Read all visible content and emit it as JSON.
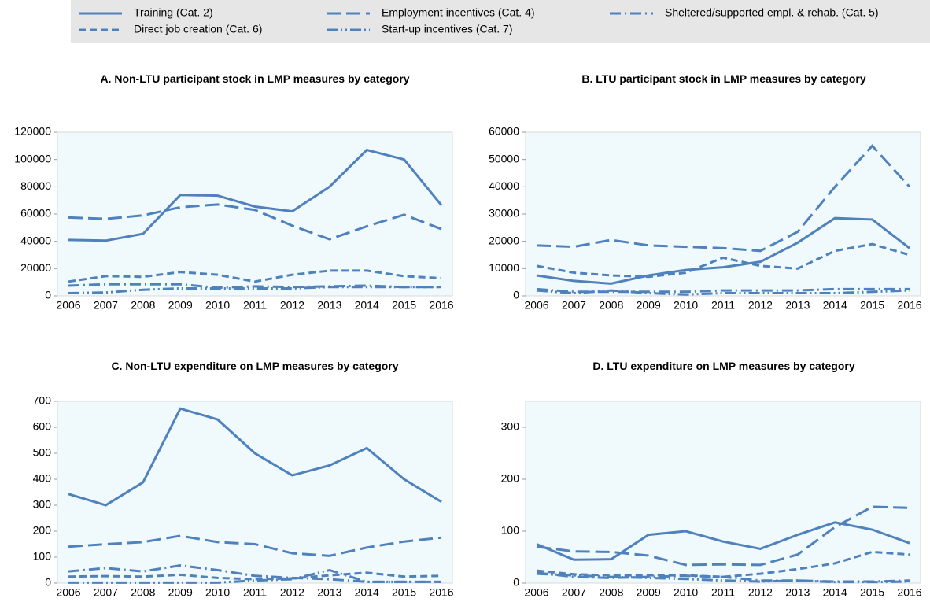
{
  "chart_data": [
    {
      "type": "line",
      "title": "A. Non-LTU participant stock in LMP measures by category",
      "categories": [
        "2006",
        "2007",
        "2008",
        "2009",
        "2010",
        "2011",
        "2012",
        "2013",
        "2014",
        "2015",
        "2016"
      ],
      "ylim": [
        0,
        120000
      ],
      "yticks": [
        0,
        20000,
        40000,
        60000,
        80000,
        100000,
        120000
      ],
      "series": [
        {
          "name": "Training (Cat. 2)",
          "color": "#4f81bd",
          "dash": "solid",
          "values": [
            41000,
            40500,
            45500,
            74000,
            73500,
            65500,
            62000,
            80000,
            107000,
            100000,
            66500
          ]
        },
        {
          "name": "Employment incentives (Cat. 4)",
          "color": "#4f81bd",
          "dash": "long",
          "values": [
            57500,
            56500,
            59000,
            65000,
            67000,
            63000,
            51500,
            41500,
            51000,
            59500,
            49000
          ]
        },
        {
          "name": "Sheltered/supported empl. & rehab. (Cat. 5)",
          "color": "#4f81bd",
          "dash": "long-dot",
          "values": [
            7500,
            8500,
            8500,
            8500,
            6000,
            7000,
            6500,
            7000,
            7500,
            6500,
            6500
          ]
        },
        {
          "name": "Direct job creation (Cat. 6)",
          "color": "#4f81bd",
          "dash": "short",
          "values": [
            10500,
            14500,
            14000,
            17500,
            15500,
            10500,
            15500,
            18500,
            18500,
            14500,
            13000
          ]
        },
        {
          "name": "Start-up incentives (Cat. 7)",
          "color": "#4f81bd",
          "dash": "long-dot-dot",
          "values": [
            2000,
            2500,
            4500,
            5500,
            5500,
            5500,
            5500,
            6500,
            6500,
            6500,
            6500
          ]
        }
      ]
    },
    {
      "type": "line",
      "title": "B. LTU participant stock in LMP measures by category",
      "categories": [
        "2006",
        "2007",
        "2008",
        "2009",
        "2010",
        "2011",
        "2012",
        "2013",
        "2014",
        "2015",
        "2016"
      ],
      "ylim": [
        0,
        60000
      ],
      "yticks": [
        0,
        10000,
        20000,
        30000,
        40000,
        50000,
        60000
      ],
      "series": [
        {
          "name": "Training (Cat. 2)",
          "color": "#4f81bd",
          "dash": "solid",
          "values": [
            7500,
            5500,
            4500,
            7500,
            9500,
            10500,
            12500,
            19500,
            28500,
            28000,
            17500
          ]
        },
        {
          "name": "Employment incentives (Cat. 4)",
          "color": "#4f81bd",
          "dash": "long",
          "values": [
            18500,
            18000,
            20500,
            18500,
            18000,
            17500,
            16500,
            23500,
            40000,
            55000,
            40000
          ]
        },
        {
          "name": "Sheltered/supported empl. & rehab. (Cat. 5)",
          "color": "#4f81bd",
          "dash": "long-dot",
          "values": [
            2500,
            1500,
            1500,
            1500,
            1500,
            2000,
            2000,
            2000,
            2500,
            2500,
            2500
          ]
        },
        {
          "name": "Direct job creation (Cat. 6)",
          "color": "#4f81bd",
          "dash": "short",
          "values": [
            11000,
            8500,
            7500,
            7000,
            8500,
            14000,
            11000,
            10000,
            16500,
            19000,
            15000
          ]
        },
        {
          "name": "Start-up incentives (Cat. 7)",
          "color": "#4f81bd",
          "dash": "long-dot-dot",
          "values": [
            2000,
            1000,
            2000,
            1000,
            500,
            1000,
            1000,
            1000,
            1000,
            1500,
            2000
          ]
        }
      ]
    },
    {
      "type": "line",
      "title": "C. Non-LTU expenditure on LMP measures by category",
      "categories": [
        "2006",
        "2007",
        "2008",
        "2009",
        "2010",
        "2011",
        "2012",
        "2013",
        "2014",
        "2015",
        "2016"
      ],
      "ylim": [
        0,
        700
      ],
      "yticks": [
        0,
        100,
        200,
        300,
        400,
        500,
        600,
        700
      ],
      "series": [
        {
          "name": "Training (Cat. 2)",
          "color": "#4f81bd",
          "dash": "solid",
          "values": [
            343,
            300,
            388,
            672,
            630,
            500,
            415,
            453,
            520,
            400,
            313
          ]
        },
        {
          "name": "Employment incentives (Cat. 4)",
          "color": "#4f81bd",
          "dash": "long",
          "values": [
            140,
            150,
            158,
            182,
            158,
            150,
            115,
            105,
            137,
            160,
            175
          ]
        },
        {
          "name": "Sheltered/supported empl. & rehab. (Cat. 5)",
          "color": "#4f81bd",
          "dash": "long-dot",
          "values": [
            45,
            58,
            45,
            68,
            50,
            28,
            20,
            15,
            5,
            5,
            5
          ]
        },
        {
          "name": "Direct job creation (Cat. 6)",
          "color": "#4f81bd",
          "dash": "short",
          "values": [
            25,
            27,
            25,
            32,
            20,
            15,
            18,
            30,
            40,
            25,
            28
          ]
        },
        {
          "name": "Start-up incentives (Cat. 7)",
          "color": "#4f81bd",
          "dash": "long-dot-dot",
          "values": [
            2,
            2,
            2,
            2,
            2,
            10,
            15,
            50,
            5,
            5,
            5
          ]
        }
      ]
    },
    {
      "type": "line",
      "title": "D. LTU expenditure on LMP measures by category",
      "categories": [
        "2006",
        "2007",
        "2008",
        "2009",
        "2010",
        "2011",
        "2012",
        "2013",
        "2014",
        "2015",
        "2016"
      ],
      "ylim": [
        0,
        350
      ],
      "yticks": [
        0,
        100,
        200,
        300
      ],
      "series": [
        {
          "name": "Training (Cat. 2)",
          "color": "#4f81bd",
          "dash": "solid",
          "values": [
            75,
            45,
            46,
            93,
            100,
            80,
            66,
            93,
            117,
            103,
            77
          ]
        },
        {
          "name": "Employment incentives (Cat. 4)",
          "color": "#4f81bd",
          "dash": "long",
          "values": [
            70,
            61,
            60,
            53,
            35,
            36,
            35,
            55,
            108,
            147,
            145
          ]
        },
        {
          "name": "Sheltered/supported empl. & rehab. (Cat. 5)",
          "color": "#4f81bd",
          "dash": "long-dot",
          "values": [
            20,
            12,
            10,
            12,
            14,
            12,
            5,
            5,
            3,
            3,
            5
          ]
        },
        {
          "name": "Direct job creation (Cat. 6)",
          "color": "#4f81bd",
          "dash": "short",
          "values": [
            24,
            17,
            15,
            15,
            15,
            12,
            18,
            27,
            38,
            60,
            55
          ]
        },
        {
          "name": "Start-up incentives (Cat. 7)",
          "color": "#4f81bd",
          "dash": "long-dot-dot",
          "values": [
            18,
            15,
            12,
            10,
            8,
            5,
            3,
            5,
            2,
            2,
            3
          ]
        }
      ]
    }
  ]
}
